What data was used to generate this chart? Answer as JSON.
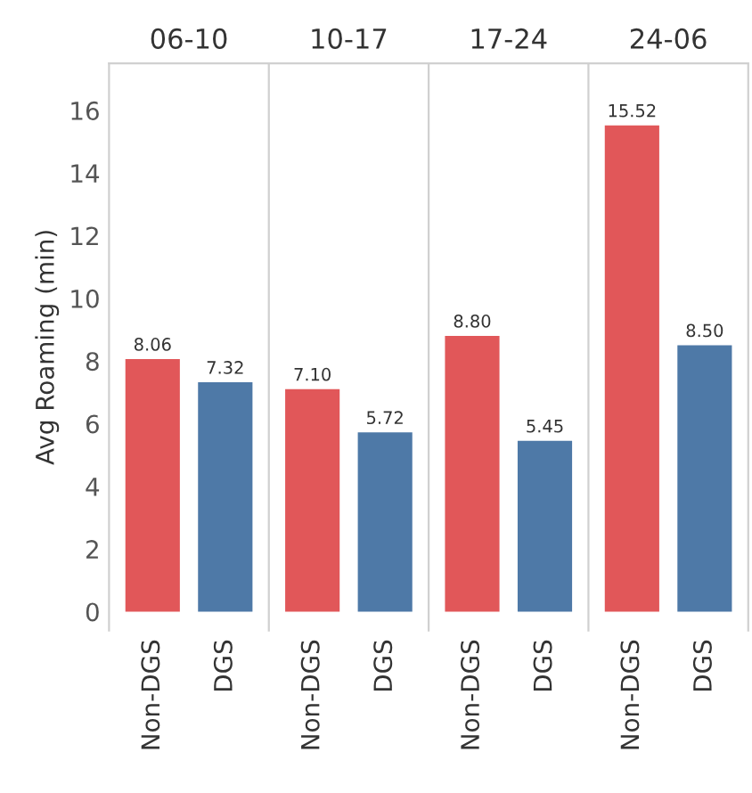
{
  "chart_data": [
    {
      "type": "bar",
      "title": "06-10",
      "ylabel": "Avg Roaming (min)",
      "categories": [
        "Non-DGS",
        "DGS"
      ],
      "values": [
        8.06,
        7.32
      ],
      "colors": [
        "#e15759",
        "#4e79a7"
      ],
      "value_labels": [
        "8.06",
        "7.32"
      ],
      "ylim": [
        -0.6,
        17.5
      ],
      "yticks": [
        0,
        2,
        4,
        6,
        8,
        10,
        12,
        14,
        16
      ]
    },
    {
      "type": "bar",
      "title": "10-17",
      "categories": [
        "Non-DGS",
        "DGS"
      ],
      "values": [
        7.1,
        5.72
      ],
      "colors": [
        "#e15759",
        "#4e79a7"
      ],
      "value_labels": [
        "7.10",
        "5.72"
      ],
      "ylim": [
        -0.6,
        17.5
      ],
      "yticks": [
        0,
        2,
        4,
        6,
        8,
        10,
        12,
        14,
        16
      ],
      "tick_labels": "x"
    },
    {
      "type": "bar",
      "title": "17-24",
      "categories": [
        "Non-DGS",
        "DGS"
      ],
      "values": [
        8.8,
        5.45
      ],
      "colors": [
        "#e15759",
        "#4e79a7"
      ],
      "value_labels": [
        "8.80",
        "5.45"
      ],
      "ylim": [
        -0.6,
        17.5
      ],
      "yticks": [
        0,
        2,
        4,
        6,
        8,
        10,
        12,
        14,
        16
      ],
      "tick_labels": "x"
    },
    {
      "type": "bar",
      "title": "24-06",
      "categories": [
        "Non-DGS",
        "DGS"
      ],
      "values": [
        15.52,
        8.5
      ],
      "colors": [
        "#e15759",
        "#4e79a7"
      ],
      "value_labels": [
        "15.52",
        "8.50"
      ],
      "ylim": [
        -0.6,
        17.5
      ],
      "yticks": [
        0,
        2,
        4,
        6,
        8,
        10,
        12,
        14,
        16
      ],
      "tick_labels": "x"
    }
  ]
}
